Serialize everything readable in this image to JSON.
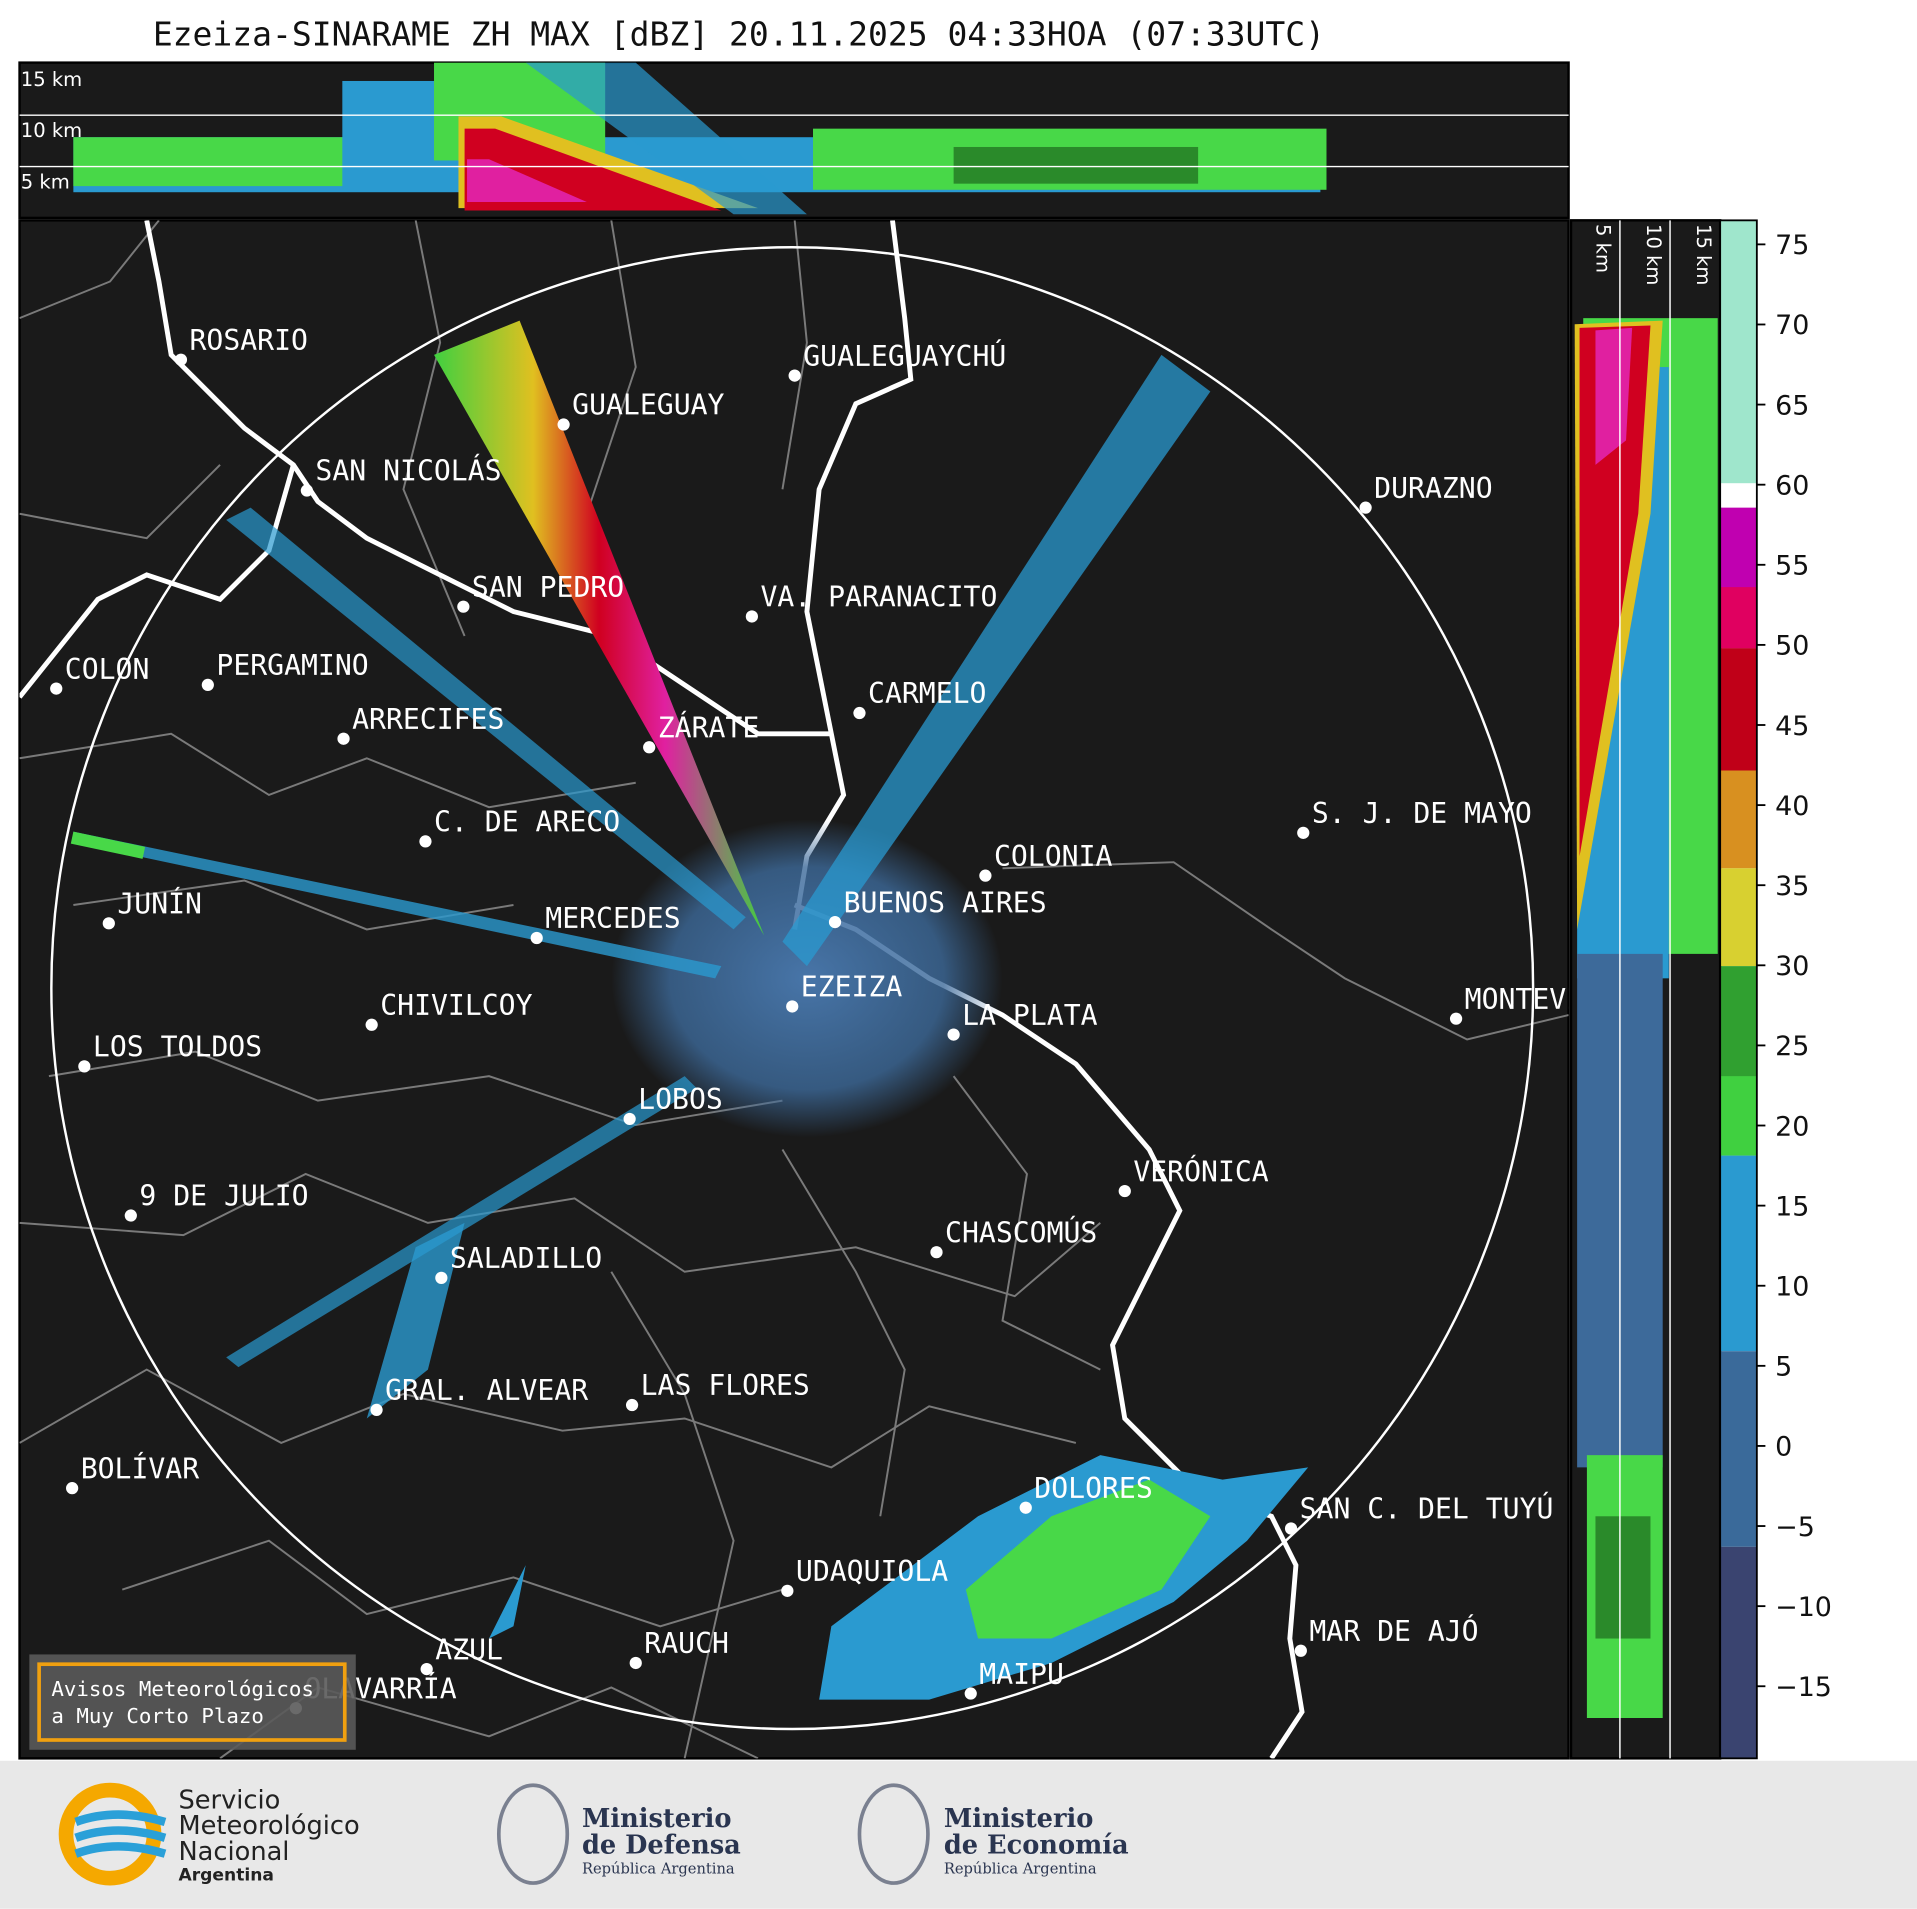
{
  "title": "Ezeiza-SINARAME ZH MAX [dBZ] 20.11.2025 04:33HOA (07:33UTC)",
  "height_labels_top": [
    "15 km",
    "10 km",
    "5 km"
  ],
  "height_labels_side": [
    "5 km",
    "10 km",
    "15 km"
  ],
  "cities": [
    "ROSARIO",
    "GUALEGUAYCHÚ",
    "GUALEGUAY",
    "SAN NICOLÁS",
    "DURAZNO",
    "SAN PEDRO",
    "VA. PARANACITO",
    "COLON",
    "PERGAMINO",
    "CARMELO",
    "ARRECIFES",
    "ZÁRATE",
    "S. J. DE MAYO",
    "C. DE ARECO",
    "COLONIA",
    "JUNÍN",
    "BUENOS AIRES",
    "MERCEDES",
    "MONTEVIDEO",
    "EZEIZA",
    "CHIVILCOY",
    "LA PLATA",
    "LOS TOLDOS",
    "LOBOS",
    "VERÓNICA",
    "9 DE JULIO",
    "CHASCOMÚS",
    "SALADILLO",
    "GRAL. ALVEAR",
    "LAS FLORES",
    "BOLÍVAR",
    "DOLORES",
    "SAN C. DEL TUYÚ",
    "UDAQUIOLA",
    "RAUCH",
    "AZUL",
    "OLAVARRÍA",
    "MAR DE AJÓ",
    "MAIPU"
  ],
  "alert_box": [
    "Avisos Meteorológicos",
    "a Muy Corto Plazo"
  ],
  "colorbar": {
    "range": [
      -19.5,
      76.5
    ],
    "ticks": [
      {
        "value": -15,
        "label": "−15"
      },
      {
        "value": -10,
        "label": "−10"
      },
      {
        "value": -5,
        "label": "−5"
      },
      0,
      5,
      10,
      15,
      20,
      25,
      30,
      35,
      40,
      45,
      50,
      55,
      60,
      65,
      70,
      75
    ]
  },
  "footer": {
    "smn": [
      "Servicio",
      "Meteorológico",
      "Nacional",
      "Argentina"
    ],
    "defensa": [
      "Ministerio",
      "de Defensa",
      "República Argentina"
    ],
    "economia": [
      "Ministerio",
      "de Economía",
      "República Argentina"
    ]
  }
}
